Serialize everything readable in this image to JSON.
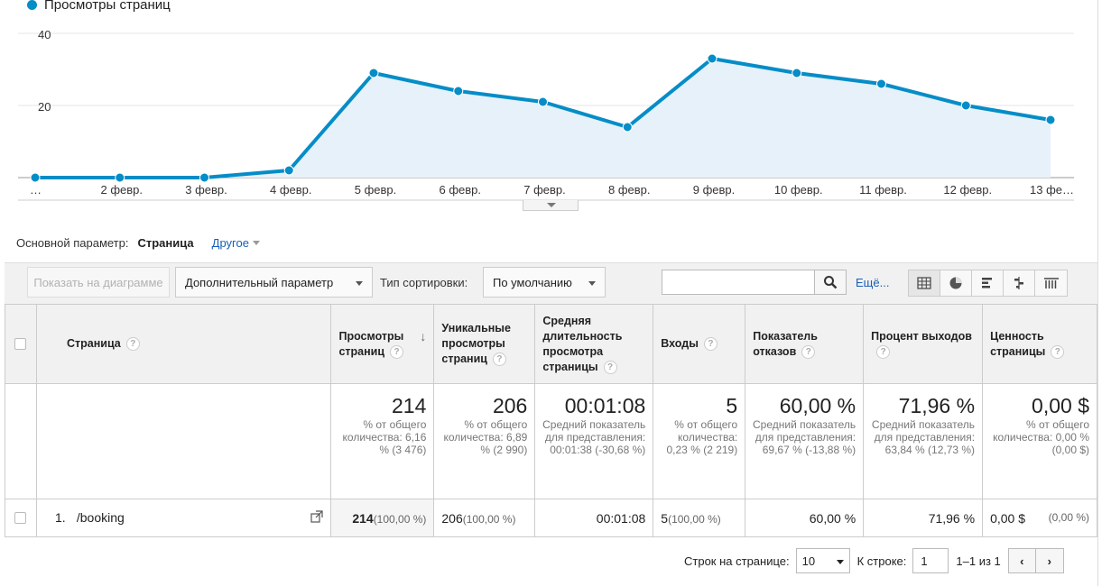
{
  "chart": {
    "legend_label": "Просмотры страниц",
    "series_color": "#058dc7"
  },
  "chart_data": {
    "type": "line",
    "x": [
      "…",
      "2 февр.",
      "3 февр.",
      "4 февр.",
      "5 февр.",
      "6 февр.",
      "7 февр.",
      "8 февр.",
      "9 февр.",
      "10 февр.",
      "11 февр.",
      "12 февр.",
      "13 фе…"
    ],
    "series": [
      {
        "name": "Просмотры страниц",
        "values": [
          0,
          0,
          0,
          2,
          29,
          24,
          21,
          14,
          33,
          29,
          26,
          20,
          16
        ]
      }
    ],
    "yticks": [
      20,
      40
    ],
    "ylim": [
      0,
      40
    ],
    "grid": true,
    "filled_area": true
  },
  "dimension": {
    "label": "Основной параметр:",
    "active": "Страница",
    "other": "Другое"
  },
  "toolbar": {
    "plot_button": "Показать на диаграмме",
    "secondary_dim": "Дополнительный параметр",
    "sort_label": "Тип сортировки:",
    "sort_value": "По умолчанию",
    "more": "Ещё..."
  },
  "table": {
    "headers": {
      "page": "Страница",
      "pageviews": "Просмотры страниц",
      "unique": "Уникальные просмотры страниц",
      "duration": "Средняя длительность просмотра страницы",
      "entrances": "Входы",
      "bounce": "Показатель отказов",
      "exit": "Процент выходов",
      "value": "Ценность страницы"
    },
    "totals": {
      "pageviews": {
        "value": "214",
        "sub": "% от общего количества: 6,16 % (3 476)"
      },
      "unique": {
        "value": "206",
        "sub": "% от общего количества: 6,89 % (2 990)"
      },
      "duration": {
        "value": "00:01:08",
        "sub": "Средний показатель для представления: 00:01:38 (-30,68 %)"
      },
      "entrances": {
        "value": "5",
        "sub": "% от общего количества: 0,23 % (2 219)"
      },
      "bounce": {
        "value": "60,00 %",
        "sub": "Средний показатель для представления: 69,67 % (-13,88 %)"
      },
      "exit": {
        "value": "71,96 %",
        "sub": "Средний показатель для представления: 63,84 % (12,73 %)"
      },
      "value": {
        "value": "0,00 $",
        "sub": "% от общего количества: 0,00 % (0,00 $)"
      }
    },
    "row": {
      "index": "1.",
      "page": "/booking",
      "pageviews": "214",
      "pageviews_pct": "(100,00 %)",
      "unique": "206",
      "unique_pct": "(100,00 %)",
      "duration": "00:01:08",
      "entrances": "5",
      "entrances_pct": "(100,00 %)",
      "bounce": "60,00 %",
      "exit": "71,96 %",
      "value": "0,00 $",
      "value_pct": "(0,00 %)"
    }
  },
  "pager": {
    "rows_label": "Строк на странице:",
    "rows_value": "10",
    "goto_label": "К строке:",
    "goto_value": "1",
    "range": "1–1 из 1"
  }
}
